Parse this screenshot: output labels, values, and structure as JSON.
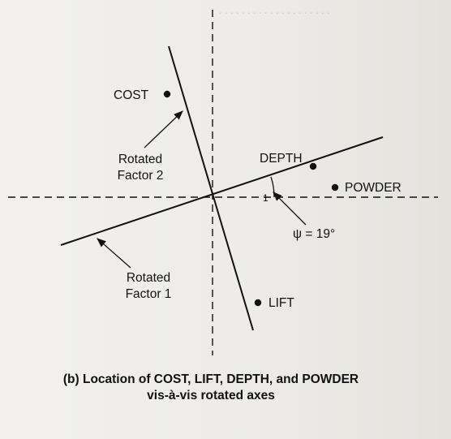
{
  "diagram": {
    "points": [
      {
        "label": "COST"
      },
      {
        "label": "DEPTH"
      },
      {
        "label": "POWDER"
      },
      {
        "label": "LIFT"
      }
    ],
    "axis_labels": {
      "factor2": [
        "Rotated",
        "Factor 2"
      ],
      "factor1": [
        "Rotated",
        "Factor 1"
      ]
    },
    "angle_label": "ψ = 19°",
    "angle_mark": "1"
  },
  "caption": {
    "line1": "(b) Location of COST, LIFT, DEPTH, and POWDER",
    "line2": "vis-à-vis rotated axes"
  },
  "colors": {
    "ink": "#111111",
    "paper": "#efeeea"
  }
}
